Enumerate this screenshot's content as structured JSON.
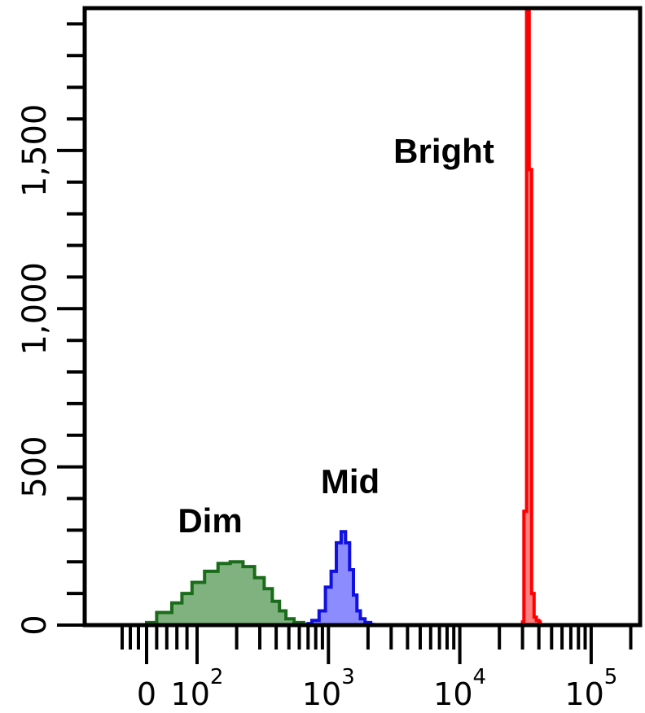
{
  "chart_data": {
    "type": "area",
    "title": "",
    "xlabel": "",
    "ylabel": "",
    "x_scale": "biexponential",
    "x_tick_labels": [
      "0",
      "10",
      "10",
      "10",
      "10"
    ],
    "x_tick_exponents": [
      "",
      "2",
      "3",
      "4",
      "5"
    ],
    "x_tick_values": [
      0,
      100,
      1000,
      10000,
      100000
    ],
    "ylim": [
      0,
      1950
    ],
    "y_tick_labels": [
      "0",
      "500",
      "1,000",
      "1,500"
    ],
    "y_tick_values": [
      0,
      500,
      1000,
      1500
    ],
    "grid": false,
    "legend": "none",
    "series": [
      {
        "name": "Dim",
        "color": "#1a6b1a",
        "fill": "#7fb27f",
        "x": [
          0,
          40,
          60,
          80,
          100,
          130,
          160,
          200,
          250,
          300,
          350,
          400,
          450,
          500,
          600,
          700
        ],
        "values": [
          8,
          40,
          70,
          100,
          135,
          170,
          195,
          200,
          185,
          150,
          115,
          75,
          45,
          20,
          8,
          2
        ]
      },
      {
        "name": "Mid",
        "color": "#1010e0",
        "fill": "#8c8cff",
        "x": [
          700,
          800,
          900,
          1000,
          1100,
          1200,
          1300,
          1400,
          1500,
          1600,
          1700,
          1800,
          2000,
          2200
        ],
        "values": [
          5,
          15,
          45,
          120,
          170,
          260,
          295,
          260,
          175,
          95,
          45,
          20,
          8,
          2
        ]
      },
      {
        "name": "Bright",
        "color": "#ff0000",
        "fill": "#ff8080",
        "x": [
          30000,
          31500,
          33000,
          34500,
          36000,
          37500,
          39000,
          41000
        ],
        "values": [
          10,
          360,
          1950,
          1440,
          100,
          25,
          15,
          10
        ]
      }
    ],
    "annotations": [
      {
        "text": "Bright",
        "series": "Bright"
      },
      {
        "text": "Mid",
        "series": "Mid"
      },
      {
        "text": "Dim",
        "series": "Dim"
      }
    ]
  }
}
